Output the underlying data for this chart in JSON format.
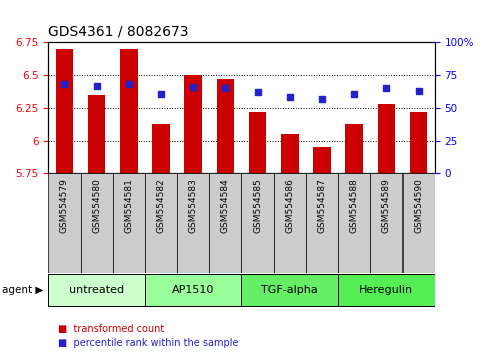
{
  "title": "GDS4361 / 8082673",
  "samples": [
    "GSM554579",
    "GSM554580",
    "GSM554581",
    "GSM554582",
    "GSM554583",
    "GSM554584",
    "GSM554585",
    "GSM554586",
    "GSM554587",
    "GSM554588",
    "GSM554589",
    "GSM554590"
  ],
  "bar_values": [
    6.7,
    6.35,
    6.7,
    6.13,
    6.5,
    6.47,
    6.22,
    6.05,
    5.95,
    6.13,
    6.28,
    6.22
  ],
  "dot_values": [
    6.43,
    6.42,
    6.43,
    6.36,
    6.41,
    6.4,
    6.37,
    6.33,
    6.32,
    6.36,
    6.4,
    6.38
  ],
  "ymin": 5.75,
  "ymax": 6.75,
  "yticks_left": [
    5.75,
    6.0,
    6.25,
    6.5,
    6.75
  ],
  "ytick_labels_left": [
    "5.75",
    "6",
    "6.25",
    "6.5",
    "6.75"
  ],
  "yticks_right": [
    0,
    25,
    50,
    75,
    100
  ],
  "ytick_labels_right": [
    "0",
    "25",
    "50",
    "75",
    "100%"
  ],
  "grid_lines": [
    6.0,
    6.25,
    6.5
  ],
  "bar_color": "#cc0000",
  "dot_color": "#2222cc",
  "agent_groups": [
    {
      "label": "untreated",
      "start": 0,
      "end": 3,
      "color": "#ccffcc"
    },
    {
      "label": "AP1510",
      "start": 3,
      "end": 6,
      "color": "#99ff99"
    },
    {
      "label": "TGF-alpha",
      "start": 6,
      "end": 9,
      "color": "#66ee66"
    },
    {
      "label": "Heregulin",
      "start": 9,
      "end": 12,
      "color": "#55ee55"
    }
  ],
  "sample_bg_color": "#cccccc",
  "xlabel_fontsize": 6.5,
  "title_fontsize": 10,
  "tick_fontsize": 7.5,
  "agent_fontsize": 8,
  "bar_width": 0.55
}
